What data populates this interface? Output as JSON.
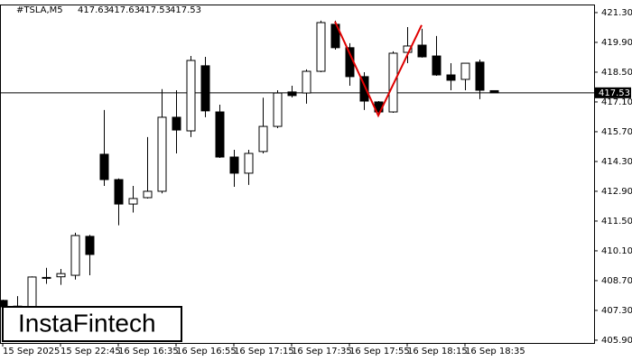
{
  "chart_data": {
    "type": "candlestick",
    "symbol": "#TSLA,M5",
    "header_values": [
      417.63,
      417.63,
      417.53,
      417.53
    ],
    "categories": [
      "15 Sep 2025",
      null,
      null,
      null,
      "15 Sep 22:45",
      null,
      null,
      null,
      "16 Sep 16:35",
      null,
      null,
      null,
      "16 Sep 16:55",
      null,
      null,
      null,
      "16 Sep 17:15",
      null,
      null,
      null,
      "16 Sep 17:35",
      null,
      null,
      null,
      "16 Sep 17:55",
      null,
      null,
      null,
      "16 Sep 18:15",
      null,
      null,
      null,
      "16 Sep 18:35",
      null,
      null
    ],
    "open": [
      407.77,
      407.5,
      407.4,
      408.85,
      408.88,
      408.95,
      410.78,
      414.64,
      413.45,
      412.3,
      412.6,
      412.9,
      416.38,
      415.74,
      418.8,
      416.63,
      414.51,
      413.75,
      414.77,
      415.95,
      417.57,
      417.52,
      418.54,
      420.75,
      419.65,
      418.29,
      417.1,
      416.63,
      419.43,
      419.77,
      419.26,
      418.37,
      418.16,
      418.97,
      417.63
    ],
    "high": [
      407.8,
      407.97,
      408.9,
      409.3,
      409.25,
      410.95,
      410.85,
      416.72,
      413.5,
      413.15,
      415.45,
      417.7,
      417.65,
      419.26,
      419.22,
      416.97,
      414.85,
      414.85,
      417.3,
      417.65,
      417.86,
      418.63,
      420.92,
      420.92,
      419.86,
      418.5,
      417.14,
      419.48,
      420.62,
      420.54,
      420.2,
      418.92,
      418.92,
      419.09,
      417.63
    ],
    "low": [
      407.4,
      407.4,
      407.3,
      408.55,
      408.5,
      408.75,
      408.95,
      413.15,
      411.3,
      411.9,
      412.56,
      412.8,
      414.68,
      415.45,
      416.38,
      414.47,
      413.11,
      413.2,
      414.68,
      415.87,
      417.31,
      417.02,
      418.5,
      419.56,
      417.86,
      416.72,
      416.46,
      416.59,
      418.92,
      419.18,
      418.33,
      417.65,
      417.65,
      417.23,
      417.53
    ],
    "close": [
      407.47,
      407.4,
      408.87,
      408.82,
      409.03,
      410.82,
      409.93,
      413.45,
      412.3,
      412.56,
      412.9,
      416.38,
      415.78,
      419.05,
      416.68,
      414.51,
      413.75,
      414.68,
      415.95,
      417.52,
      417.4,
      418.54,
      420.83,
      419.65,
      418.29,
      417.14,
      416.63,
      419.39,
      419.73,
      419.22,
      418.37,
      418.12,
      418.92,
      417.65,
      417.53
    ],
    "up_color": "#ffffff",
    "down_color": "#000000",
    "ylim": [
      405.77,
      421.68
    ],
    "yticks": [
      {
        "value": 421.3,
        "label": "421.30"
      },
      {
        "value": 419.9,
        "label": "419.90"
      },
      {
        "value": 418.5,
        "label": "418.50"
      },
      {
        "value": 417.1,
        "label": "417.10"
      },
      {
        "value": 415.7,
        "label": "415.70"
      },
      {
        "value": 414.3,
        "label": "414.30"
      },
      {
        "value": 412.9,
        "label": "412.90"
      },
      {
        "value": 411.5,
        "label": "411.50"
      },
      {
        "value": 410.1,
        "label": "410.10"
      },
      {
        "value": 408.7,
        "label": "408.70"
      },
      {
        "value": 407.3,
        "label": "407.30"
      },
      {
        "value": 405.9,
        "label": "405.90"
      }
    ],
    "price_line": 417.53,
    "pattern": {
      "color": "#e00000",
      "x": [
        23,
        26,
        29
      ],
      "values": [
        420.88,
        416.46,
        420.71
      ]
    },
    "logo": "InstaFintech"
  }
}
